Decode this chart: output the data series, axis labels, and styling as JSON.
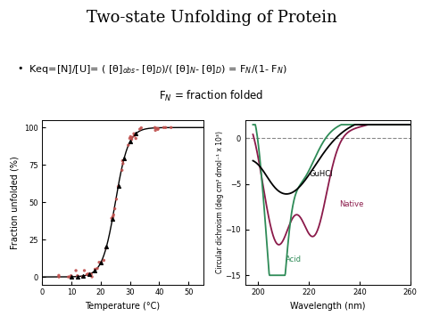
{
  "title": "Two-state Unfolding of Protein",
  "background_color": "#ffffff",
  "left_plot": {
    "xlabel": "Temperature (°C)",
    "ylabel": "Fraction unfolded (%)",
    "xlim": [
      0,
      55
    ],
    "ylim": [
      -5,
      105
    ],
    "xticks": [
      0,
      10,
      20,
      30,
      40,
      50
    ],
    "yticks": [
      0,
      25,
      50,
      75,
      100
    ],
    "sigmoid_Tm": 25,
    "sigmoid_k": 0.45,
    "scatter_color": "#c0504d",
    "line_color": "#000000",
    "facecolor": "#ffffff"
  },
  "right_plot": {
    "xlabel": "Wavelength (nm)",
    "ylabel": "Circular dichroism (deg cm² dmol⁻¹ x 10³)",
    "xlim": [
      195,
      260
    ],
    "ylim": [
      -16,
      2
    ],
    "xticks": [
      200,
      220,
      240,
      260
    ],
    "yticks": [
      -15,
      -10,
      -5,
      0
    ],
    "facecolor": "#ffffff",
    "curves": {
      "GuHCl": {
        "color": "#000000",
        "label": "GuHCl"
      },
      "Native": {
        "color": "#8b1a4a",
        "label": "Native"
      },
      "Acid": {
        "color": "#2e8b57",
        "label": "Acid"
      }
    }
  }
}
